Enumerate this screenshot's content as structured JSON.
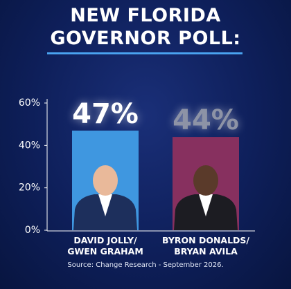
{
  "chart_data": {
    "type": "bar",
    "title": "NEW FLORIDA GOVERNOR POLL:",
    "categories": [
      "DAVID JOLLY/ GWEN GRAHAM",
      "BYRON DONALDS/ BRYAN AVILA"
    ],
    "values": [
      47,
      44
    ],
    "value_labels": [
      "47%",
      "44%"
    ],
    "colors": [
      "#3f97e0",
      "#87305f"
    ],
    "label_colors": [
      "#ffffff",
      "#8d93a6"
    ],
    "ylim": [
      0,
      60
    ],
    "yticks": [
      {
        "value": 0,
        "label": "0%"
      },
      {
        "value": 20,
        "label": "20%"
      },
      {
        "value": 40,
        "label": "40%"
      },
      {
        "value": 60,
        "label": "60%"
      }
    ],
    "source": "Source: Change Research - September 2026."
  }
}
